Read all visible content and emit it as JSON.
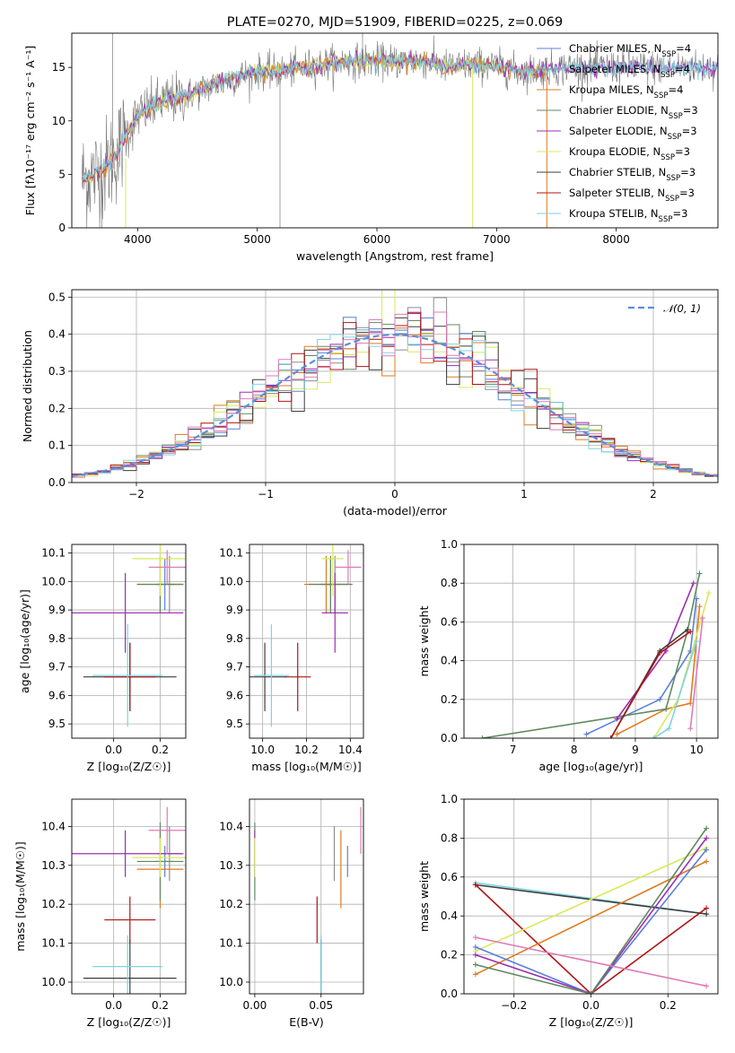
{
  "figure": {
    "title": "PLATE=0270, MJD=51909, FIBERID=0225, z=0.069",
    "colors": {
      "Chabrier MILES": "#5b7fd9",
      "Salpeter MILES": "#8e8e8e",
      "Kroupa MILES": "#e07a1f",
      "Chabrier ELODIE": "#5f8a5f",
      "Salpeter ELODIE": "#9b2fb0",
      "Kroupa ELODIE": "#d8e85a",
      "Chabrier STELIB": "#3d3d3d",
      "Salpeter STELIB": "#b01515",
      "Kroupa STELIB": "#7ed3e0",
      "Pink": "#e07ab8",
      "Normal": "#5b8fd9"
    }
  },
  "chart_data": [
    {
      "id": "spectrum",
      "type": "line",
      "title": "PLATE=0270, MJD=51909, FIBERID=0225, z=0.069",
      "xlabel": "wavelength [Angstrom, rest frame]",
      "ylabel": "Flux [fλ10⁻¹⁷ erg cm⁻² s⁻¹ A⁻¹]",
      "xlim": [
        3450,
        8850
      ],
      "ylim": [
        0,
        18.2
      ],
      "xticks": [
        4000,
        5000,
        6000,
        7000,
        8000
      ],
      "yticks": [
        0,
        5,
        10,
        15
      ],
      "legend": "upper right",
      "series": [
        {
          "name": "Chabrier MILES, N",
          "sub": "SSP",
          "suffix": "=4",
          "key": "Chabrier MILES"
        },
        {
          "name": "Salpeter MILES, N",
          "sub": "SSP",
          "suffix": "=4",
          "key": "Salpeter MILES"
        },
        {
          "name": "Kroupa MILES, N",
          "sub": "SSP",
          "suffix": "=4",
          "key": "Kroupa MILES"
        },
        {
          "name": "Chabrier ELODIE, N",
          "sub": "SSP",
          "suffix": "=3",
          "key": "Chabrier ELODIE"
        },
        {
          "name": "Salpeter ELODIE, N",
          "sub": "SSP",
          "suffix": "=3",
          "key": "Salpeter ELODIE"
        },
        {
          "name": "Kroupa ELODIE, N",
          "sub": "SSP",
          "suffix": "=3",
          "key": "Kroupa ELODIE"
        },
        {
          "name": "Chabrier STELIB, N",
          "sub": "SSP",
          "suffix": "=3",
          "key": "Chabrier STELIB"
        },
        {
          "name": "Salpeter STELIB, N",
          "sub": "SSP",
          "suffix": "=3",
          "key": "Salpeter STELIB"
        },
        {
          "name": "Kroupa STELIB, N",
          "sub": "SSP",
          "suffix": "=3",
          "key": "Kroupa STELIB"
        }
      ],
      "continuum": {
        "x": [
          3530,
          3700,
          3800,
          3900,
          4000,
          4200,
          4400,
          4600,
          4800,
          5000,
          5200,
          5400,
          5600,
          5800,
          6000,
          6200,
          6400,
          6600,
          6800,
          7000,
          7200,
          7400,
          7600
        ],
        "y": [
          4.5,
          5.2,
          6.5,
          8.5,
          10.5,
          11.8,
          12.3,
          13.2,
          14.0,
          14.6,
          14.6,
          15.0,
          15.4,
          15.6,
          15.6,
          15.6,
          15.6,
          15.0,
          15.3,
          15.1,
          14.6,
          14.8,
          15.0
        ]
      }
    },
    {
      "id": "residuals",
      "type": "line",
      "xlabel": "(data-model)/error",
      "ylabel": "Normed distribution",
      "xlim": [
        -2.5,
        2.5
      ],
      "ylim": [
        0,
        0.52
      ],
      "xticks": [
        -2,
        -1,
        0,
        1,
        2
      ],
      "xticklabels": [
        "−2",
        "−1",
        "0",
        "1",
        "2"
      ],
      "yticks": [
        0.0,
        0.1,
        0.2,
        0.3,
        0.4,
        0.5
      ],
      "yticklabels": [
        "0.0",
        "0.1",
        "0.2",
        "0.3",
        "0.4",
        "0.5"
      ],
      "legend": "𝒩(0, 1)",
      "normal": {
        "mean": 0,
        "sigma": 1
      }
    },
    {
      "id": "age_vs_Z",
      "type": "scatter",
      "xlabel": "Z [log₁₀(Z/Z☉)]",
      "ylabel": "age  [log₁₀(age/yr)]",
      "xlim": [
        -0.18,
        0.31
      ],
      "ylim": [
        9.45,
        10.13
      ],
      "xticks": [
        0.0,
        0.2
      ],
      "yticks": [
        9.5,
        9.6,
        9.7,
        9.8,
        9.9,
        10.0,
        10.1
      ]
    },
    {
      "id": "age_vs_mass",
      "type": "scatter",
      "xlabel": "mass [log₁₀(M/M☉)]",
      "xlim": [
        9.94,
        10.46
      ],
      "ylim": [
        9.45,
        10.13
      ],
      "xticks": [
        10.0,
        10.2,
        10.4
      ],
      "yticks": [
        9.5,
        9.6,
        9.7,
        9.8,
        9.9,
        10.0,
        10.1
      ]
    },
    {
      "id": "massweight_vs_age",
      "type": "line",
      "xlabel": "age  [log₁₀(age/yr)]",
      "ylabel": "mass weight",
      "xlim": [
        6.2,
        10.35
      ],
      "ylim": [
        0,
        1
      ],
      "xticks": [
        7,
        8,
        9,
        10
      ],
      "yticks": [
        0.0,
        0.2,
        0.4,
        0.6,
        0.8,
        1.0
      ]
    },
    {
      "id": "mass_vs_Z",
      "type": "scatter",
      "xlabel": "Z [log₁₀(Z/Z☉)]",
      "ylabel": "mass [log₁₀(M/M☉)]",
      "xlim": [
        -0.18,
        0.31
      ],
      "ylim": [
        9.97,
        10.47
      ],
      "xticks": [
        0.0,
        0.2
      ],
      "yticks": [
        10.0,
        10.1,
        10.2,
        10.3,
        10.4
      ]
    },
    {
      "id": "mass_vs_ebv",
      "type": "scatter",
      "xlabel": "E(B-V)",
      "xlim": [
        -0.004,
        0.082
      ],
      "ylim": [
        9.97,
        10.47
      ],
      "xticks": [
        0.0,
        0.05
      ],
      "xticklabels": [
        "0.00",
        "0.05"
      ],
      "yticks": [
        10.0,
        10.1,
        10.2,
        10.3,
        10.4
      ]
    },
    {
      "id": "massweight_vs_Z",
      "type": "line",
      "xlabel": "Z [log₁₀(Z/Z☉)]",
      "ylabel": "mass weight",
      "xlim": [
        -0.33,
        0.33
      ],
      "ylim": [
        0,
        1
      ],
      "xticks": [
        -0.2,
        0.0,
        0.2
      ],
      "xticklabels": [
        "−0.2",
        "0.0",
        "0.2"
      ],
      "yticks": [
        0.0,
        0.2,
        0.4,
        0.6,
        0.8,
        1.0
      ]
    }
  ],
  "fits": [
    {
      "key": "Chabrier MILES",
      "Z": 0.22,
      "Zerr": 0.04,
      "age": 9.99,
      "ageErr": 0.09,
      "mass": 10.31,
      "massErr": 0.04,
      "ebv": 0.07,
      "ebvErr": 0.0
    },
    {
      "key": "Salpeter MILES",
      "Z": 0.24,
      "Zerr": 0.05,
      "age": 9.99,
      "ageErr": 0.1,
      "mass": 10.33,
      "massErr": 0.07,
      "ebv": 0.06,
      "ebvErr": 0.0
    },
    {
      "key": "Kroupa MILES",
      "Z": 0.2,
      "Zerr": 0.1,
      "age": 9.99,
      "ageErr": 0.1,
      "mass": 10.29,
      "massErr": 0.1,
      "ebv": 0.065,
      "ebvErr": 0.0
    },
    {
      "key": "Chabrier ELODIE",
      "Z": 0.2,
      "Zerr": 0.1,
      "age": 9.99,
      "ageErr": 0.1,
      "mass": 10.31,
      "massErr": 0.1,
      "ebv": 0.0,
      "ebvErr": 0.0
    },
    {
      "key": "Salpeter ELODIE",
      "Z": 0.05,
      "Zerr": 0.25,
      "age": 9.89,
      "ageErr": 0.14,
      "mass": 10.33,
      "massErr": 0.06,
      "ebv": 0.0,
      "ebvErr": 0.0
    },
    {
      "key": "Kroupa ELODIE",
      "Z": 0.2,
      "Zerr": 0.12,
      "age": 10.08,
      "ageErr": 0.13,
      "mass": 10.32,
      "massErr": 0.05,
      "ebv": 0.0,
      "ebvErr": 0.0
    },
    {
      "key": "Chabrier STELIB",
      "Z": 0.07,
      "Zerr": 0.2,
      "age": 9.665,
      "ageErr": 0.12,
      "mass": 10.01,
      "massErr": 0.1,
      "ebv": 0.05,
      "ebvErr": 0.0
    },
    {
      "key": "Salpeter STELIB",
      "Z": 0.07,
      "Zerr": 0.11,
      "age": 9.665,
      "ageErr": 0.12,
      "mass": 10.16,
      "massErr": 0.06,
      "ebv": 0.047,
      "ebvErr": 0.0
    },
    {
      "key": "Kroupa STELIB",
      "Z": 0.06,
      "Zerr": 0.15,
      "age": 9.67,
      "ageErr": 0.18,
      "mass": 10.04,
      "massErr": 0.08,
      "ebv": 0.05,
      "ebvErr": 0.0
    },
    {
      "key": "Pink",
      "Z": 0.23,
      "Zerr": 0.08,
      "age": 10.05,
      "ageErr": 0.06,
      "mass": 10.39,
      "massErr": 0.06,
      "ebv": 0.08,
      "ebvErr": 0.0
    }
  ],
  "weights_age": [
    {
      "key": "Chabrier MILES",
      "age": [
        8.2,
        9.4,
        9.9,
        10.0
      ],
      "w": [
        0.02,
        0.2,
        0.45,
        0.72
      ]
    },
    {
      "key": "Kroupa MILES",
      "age": [
        8.7,
        9.5,
        9.9,
        10.05
      ],
      "w": [
        0.02,
        0.15,
        0.18,
        0.68
      ]
    },
    {
      "key": "Chabrier ELODIE",
      "age": [
        6.5,
        9.5,
        9.85,
        10.05
      ],
      "w": [
        0.0,
        0.15,
        0.55,
        0.85
      ]
    },
    {
      "key": "Salpeter ELODIE",
      "age": [
        8.7,
        9.5,
        9.95
      ],
      "w": [
        0.1,
        0.45,
        0.8
      ]
    },
    {
      "key": "Kroupa ELODIE",
      "age": [
        9.3,
        9.7,
        10.2
      ],
      "w": [
        0.0,
        0.2,
        0.75
      ]
    },
    {
      "key": "Chabrier STELIB",
      "age": [
        8.6,
        9.4,
        9.85
      ],
      "w": [
        0.0,
        0.45,
        0.56
      ]
    },
    {
      "key": "Salpeter STELIB",
      "age": [
        8.6,
        9.4,
        9.9
      ],
      "w": [
        0.0,
        0.44,
        0.55
      ]
    },
    {
      "key": "Kroupa STELIB",
      "age": [
        9.3,
        9.55,
        10.0
      ],
      "w": [
        0.0,
        0.05,
        0.5
      ]
    },
    {
      "key": "Pink",
      "age": [
        9.9,
        10.1
      ],
      "w": [
        0.05,
        0.62
      ]
    }
  ],
  "weights_Z": [
    {
      "key": "Kroupa STELIB",
      "Z": [
        -0.3,
        0.3
      ],
      "w": [
        0.57,
        0.41
      ]
    },
    {
      "key": "Chabrier STELIB",
      "Z": [
        -0.3,
        0.3
      ],
      "w": [
        0.56,
        0.41
      ]
    },
    {
      "key": "Salpeter STELIB",
      "Z": [
        -0.3,
        0.0,
        0.3
      ],
      "w": [
        0.56,
        0.0,
        0.44
      ]
    },
    {
      "key": "Kroupa ELODIE",
      "Z": [
        -0.3,
        0.3
      ],
      "w": [
        0.22,
        0.75
      ]
    },
    {
      "key": "Kroupa MILES",
      "Z": [
        -0.3,
        0.3
      ],
      "w": [
        0.1,
        0.68
      ]
    },
    {
      "key": "Chabrier MILES",
      "Z": [
        -0.3,
        0.0,
        0.3
      ],
      "w": [
        0.24,
        0.0,
        0.74
      ]
    },
    {
      "key": "Salpeter ELODIE",
      "Z": [
        -0.3,
        0.0,
        0.3
      ],
      "w": [
        0.2,
        0.0,
        0.8
      ]
    },
    {
      "key": "Chabrier ELODIE",
      "Z": [
        -0.3,
        0.0,
        0.3
      ],
      "w": [
        0.15,
        0.0,
        0.85
      ]
    },
    {
      "key": "Pink",
      "Z": [
        -0.3,
        0.3
      ],
      "w": [
        0.29,
        0.04
      ]
    }
  ]
}
